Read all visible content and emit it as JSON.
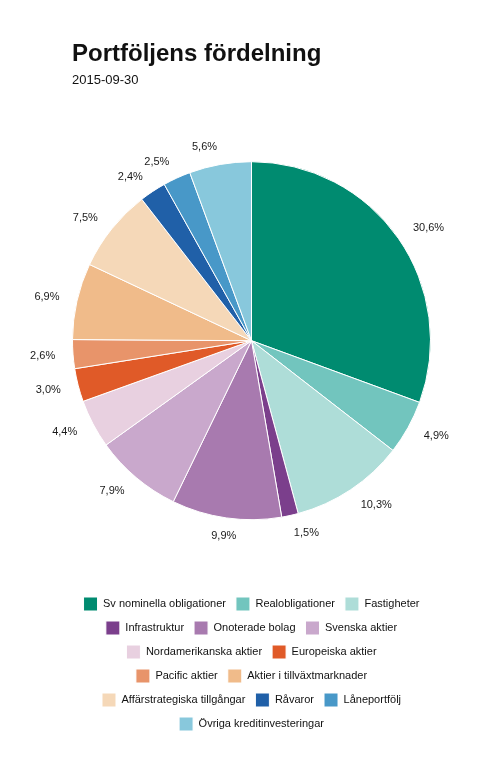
{
  "chart_data": {
    "type": "pie",
    "title": "Portföljens fördelning",
    "subtitle": "2015-09-30",
    "categories": [
      "Sv nominella obligationer",
      "Realobligationer",
      "Fastigheter",
      "Infrastruktur",
      "Onoterade bolag",
      "Svenska aktier",
      "Nordamerikanska aktier",
      "Europeiska aktier",
      "Pacific aktier",
      "Aktier i tillväxtmarknader",
      "Affärstrategiska tillgångar",
      "Råvaror",
      "Låneportfölj",
      "Övriga kreditinvesteringar"
    ],
    "values": [
      30.6,
      4.9,
      10.3,
      1.5,
      9.9,
      7.9,
      4.4,
      3.0,
      2.6,
      6.9,
      7.5,
      2.4,
      2.5,
      5.6
    ],
    "value_labels": [
      "30,6%",
      "4,9%",
      "10,3%",
      "1,5%",
      "9,9%",
      "7,9%",
      "4,4%",
      "3,0%",
      "2,6%",
      "6,9%",
      "7,5%",
      "2,4%",
      "2,5%",
      "5,6%"
    ],
    "colors": [
      "#008B70",
      "#72C5BE",
      "#AEDDD8",
      "#7B3F8C",
      "#A87AAF",
      "#C9A8CC",
      "#E8D0E0",
      "#E05A28",
      "#E8946A",
      "#F0BB8A",
      "#F5D8B8",
      "#2060A8",
      "#4898C8",
      "#88C8DC"
    ],
    "data_labels": true,
    "legend": "bottom"
  }
}
